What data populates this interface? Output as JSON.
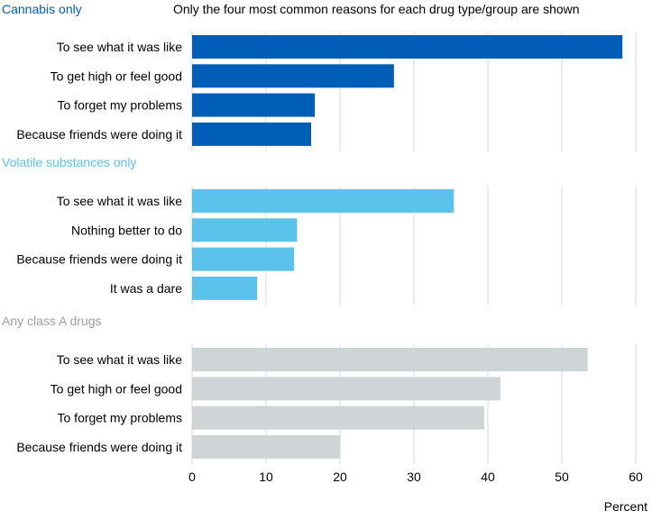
{
  "chart_data": {
    "type": "bar",
    "orientation": "horizontal",
    "note": "Only the four most common reasons for each drug type/group are shown",
    "xlabel": "Percent",
    "xlim": [
      0,
      60
    ],
    "xticks": [
      "0",
      "10",
      "20",
      "30",
      "40",
      "50",
      "60"
    ],
    "grid": true,
    "panels": [
      {
        "title": "Cannabis only",
        "color": "#005EB8",
        "categories": [
          "To see what it was like",
          "To get high or feel good",
          "To forget my problems",
          "Because friends were doing it"
        ],
        "values": [
          58.2,
          27.3,
          16.6,
          16.1
        ]
      },
      {
        "title": "Volatile substances only",
        "color": "#5BC2EC",
        "categories": [
          "To see what it was like",
          "Nothing better to do",
          "Because friends were doing it",
          "It was a dare"
        ],
        "values": [
          35.4,
          14.2,
          13.8,
          8.8
        ]
      },
      {
        "title": "Any class A drugs",
        "color": "#CFD4D6",
        "categories": [
          "To see what it was like",
          "To get high or feel good",
          "To forget my problems",
          "Because friends were doing it"
        ],
        "values": [
          53.5,
          41.7,
          39.5,
          20.0
        ]
      }
    ]
  }
}
